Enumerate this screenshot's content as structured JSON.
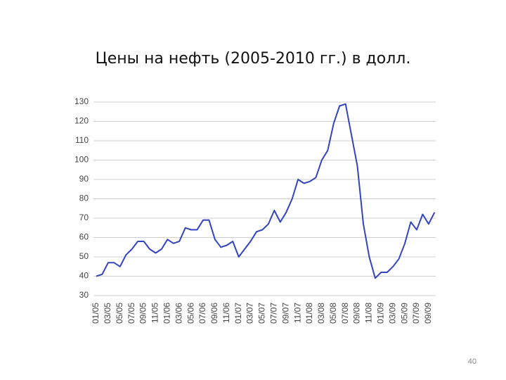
{
  "chart_data": {
    "type": "line",
    "title": "Цены на нефть (2005-2010 гг.) в долл.",
    "categories": [
      "01/05",
      null,
      "03/05",
      null,
      "05/05",
      null,
      "07/05",
      null,
      "09/05",
      null,
      "11/05",
      null,
      "01/06",
      null,
      "03/06",
      null,
      "05/06",
      null,
      "07/06",
      null,
      "09/06",
      null,
      "11/06",
      null,
      "01/07",
      null,
      "03/07",
      null,
      "05/07",
      null,
      "07/07",
      null,
      "09/07",
      null,
      "11/07",
      null,
      "01/08",
      null,
      "03/08",
      null,
      "05/08",
      null,
      "07/08",
      null,
      "09/08",
      null,
      "11/08",
      null,
      "01/09",
      null,
      "03/09",
      null,
      "05/09",
      null,
      "07/09",
      null,
      "09/09",
      null
    ],
    "series": [
      {
        "color": "#3344c0",
        "values": [
          40,
          41,
          47,
          47,
          45,
          51,
          54,
          58,
          58,
          54,
          52,
          54,
          59,
          57,
          58,
          65,
          64,
          64,
          69,
          69,
          59,
          55,
          56,
          58,
          50,
          54,
          58,
          63,
          64,
          67,
          74,
          68,
          73,
          80,
          90,
          88,
          89,
          91,
          100,
          105,
          119,
          128,
          129,
          113,
          97,
          67,
          50,
          39,
          42,
          42,
          45,
          49,
          57,
          68,
          64,
          72,
          67,
          73
        ]
      }
    ],
    "ylim": [
      30,
      130
    ],
    "yticks": [
      30,
      40,
      50,
      60,
      70,
      80,
      90,
      100,
      110,
      120,
      130
    ],
    "grid": true
  },
  "slide": {
    "page_number": "40"
  }
}
